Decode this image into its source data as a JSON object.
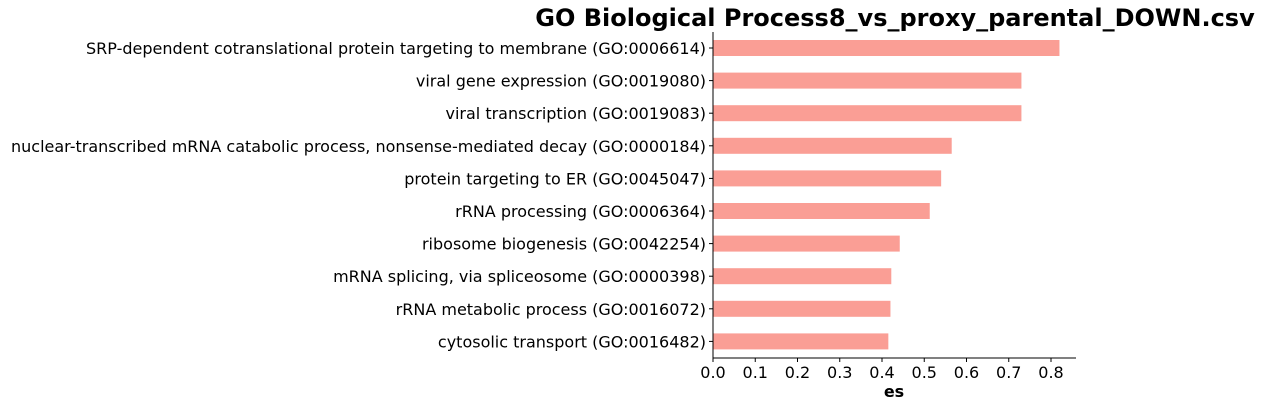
{
  "chart_data": {
    "type": "bar",
    "orientation": "horizontal",
    "title": "GO Biological Process8_vs_proxy_parental_DOWN.csv",
    "xlabel": "es",
    "ylabel": "",
    "xlim": [
      0,
      0.86
    ],
    "xticks": [
      "0.0",
      "0.1",
      "0.2",
      "0.3",
      "0.4",
      "0.5",
      "0.6",
      "0.7",
      "0.8"
    ],
    "bar_color": "#fa9e95",
    "grid": false,
    "categories": [
      "SRP-dependent cotranslational protein targeting to membrane (GO:0006614)",
      "viral gene expression (GO:0019080)",
      "viral transcription (GO:0019083)",
      "nuclear-transcribed mRNA catabolic process, nonsense-mediated decay (GO:0000184)",
      "protein targeting to ER (GO:0045047)",
      "rRNA processing (GO:0006364)",
      "ribosome biogenesis (GO:0042254)",
      "mRNA splicing, via spliceosome (GO:0000398)",
      "rRNA metabolic process (GO:0016072)",
      "cytosolic transport (GO:0016482)"
    ],
    "values": [
      0.82,
      0.73,
      0.73,
      0.565,
      0.54,
      0.513,
      0.442,
      0.422,
      0.42,
      0.415
    ]
  }
}
